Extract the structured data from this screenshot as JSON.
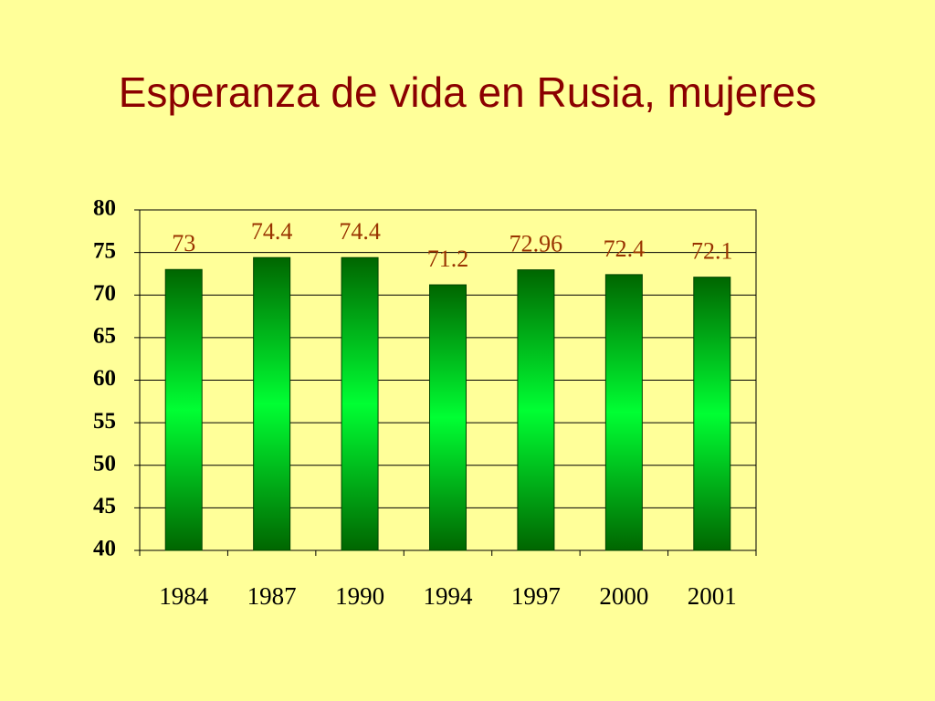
{
  "chart_data": {
    "type": "bar",
    "title": "Esperanza de vida en Rusia, mujeres",
    "categories": [
      "1984",
      "1987",
      "1990",
      "1994",
      "1997",
      "2000",
      "2001"
    ],
    "values": [
      73,
      74.4,
      74.4,
      71.2,
      72.96,
      72.4,
      72.1
    ],
    "color": "#00ff33",
    "ylim": [
      40,
      80
    ],
    "yticks": [
      40,
      45,
      50,
      55,
      60,
      65,
      70,
      75,
      80
    ],
    "grid": true
  }
}
